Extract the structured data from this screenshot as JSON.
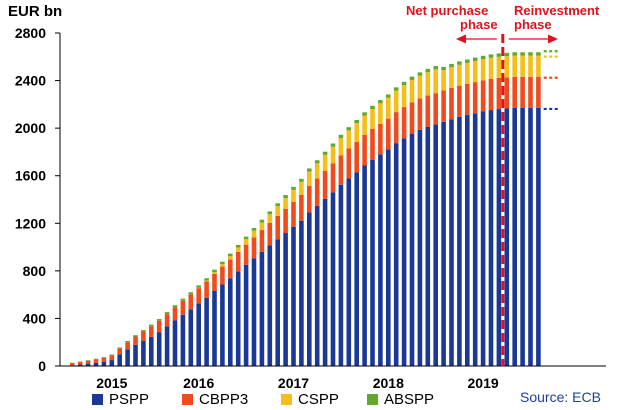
{
  "chart_data": {
    "type": "bar",
    "stacked": true,
    "unit_label": "EUR bn",
    "ylim": [
      0,
      2800
    ],
    "y_ticks": [
      0,
      400,
      800,
      1200,
      1600,
      2000,
      2400,
      2800
    ],
    "x_year_labels": [
      {
        "label": "2015",
        "month_index": 5
      },
      {
        "label": "2016",
        "month_index": 16
      },
      {
        "label": "2017",
        "month_index": 28
      },
      {
        "label": "2018",
        "month_index": 40
      },
      {
        "label": "2019",
        "month_index": 52
      }
    ],
    "grid": false,
    "legend_position": "bottom",
    "series": [
      {
        "name": "PSPP",
        "color": "#1b3896",
        "values": [
          5,
          12,
          20,
          26,
          34,
          50,
          98,
          140,
          178,
          210,
          246,
          285,
          333,
          383,
          430,
          477,
          525,
          573,
          631,
          686,
          738,
          796,
          850,
          905,
          960,
          1013,
          1065,
          1118,
          1171,
          1222,
          1292,
          1346,
          1405,
          1461,
          1524,
          1577,
          1629,
          1686,
          1735,
          1778,
          1820,
          1874,
          1915,
          1954,
          1985,
          2010,
          2030,
          2053,
          2075,
          2095,
          2110,
          2125,
          2140,
          2152,
          2160,
          2165,
          2170,
          2170,
          2170,
          2170
        ]
      },
      {
        "name": "CBPP3",
        "color": "#ef4b1f",
        "values": [
          20,
          22,
          25,
          30,
          35,
          40,
          50,
          60,
          70,
          80,
          88,
          95,
          103,
          110,
          117,
          123,
          130,
          137,
          143,
          150,
          157,
          163,
          170,
          177,
          183,
          190,
          197,
          203,
          210,
          217,
          223,
          230,
          237,
          243,
          247,
          252,
          255,
          257,
          258,
          259,
          260,
          261,
          262,
          263,
          264,
          264,
          264,
          264,
          263,
          262,
          262,
          262,
          262,
          262,
          262,
          262,
          262,
          262,
          262,
          262
        ]
      },
      {
        "name": "CSPP",
        "color": "#f4bf1b",
        "values": [
          0,
          0,
          0,
          0,
          0,
          0,
          0,
          0,
          0,
          0,
          0,
          0,
          0,
          0,
          0,
          0,
          3,
          8,
          15,
          20,
          28,
          37,
          46,
          55,
          64,
          73,
          82,
          91,
          100,
          110,
          120,
          128,
          134,
          140,
          146,
          152,
          158,
          163,
          168,
          172,
          176,
          180,
          184,
          188,
          192,
          196,
          200,
          170,
          174,
          176,
          177,
          178,
          178,
          178,
          178,
          178,
          178,
          178,
          178,
          178
        ]
      },
      {
        "name": "ABSPP",
        "color": "#62a82d",
        "values": [
          2,
          3,
          4,
          5,
          6,
          7,
          8,
          10,
          11,
          12,
          14,
          15,
          17,
          18,
          19,
          20,
          20,
          20,
          21,
          21,
          22,
          22,
          22,
          23,
          23,
          24,
          24,
          25,
          25,
          25,
          26,
          26,
          26,
          27,
          27,
          27,
          27,
          27,
          27,
          27,
          27,
          28,
          28,
          28,
          28,
          28,
          28,
          28,
          28,
          28,
          28,
          28,
          28,
          28,
          28,
          28,
          28,
          28,
          28,
          28
        ]
      }
    ],
    "annotations": {
      "net_purchase": {
        "line1": "Net purchase",
        "line2": "phase"
      },
      "reinvestment": {
        "line1": "Reinvestment",
        "line2": "phase"
      },
      "phase_boundary_month_index": 55,
      "last_actual_month_index": 59
    },
    "source": "Source: ECB"
  }
}
